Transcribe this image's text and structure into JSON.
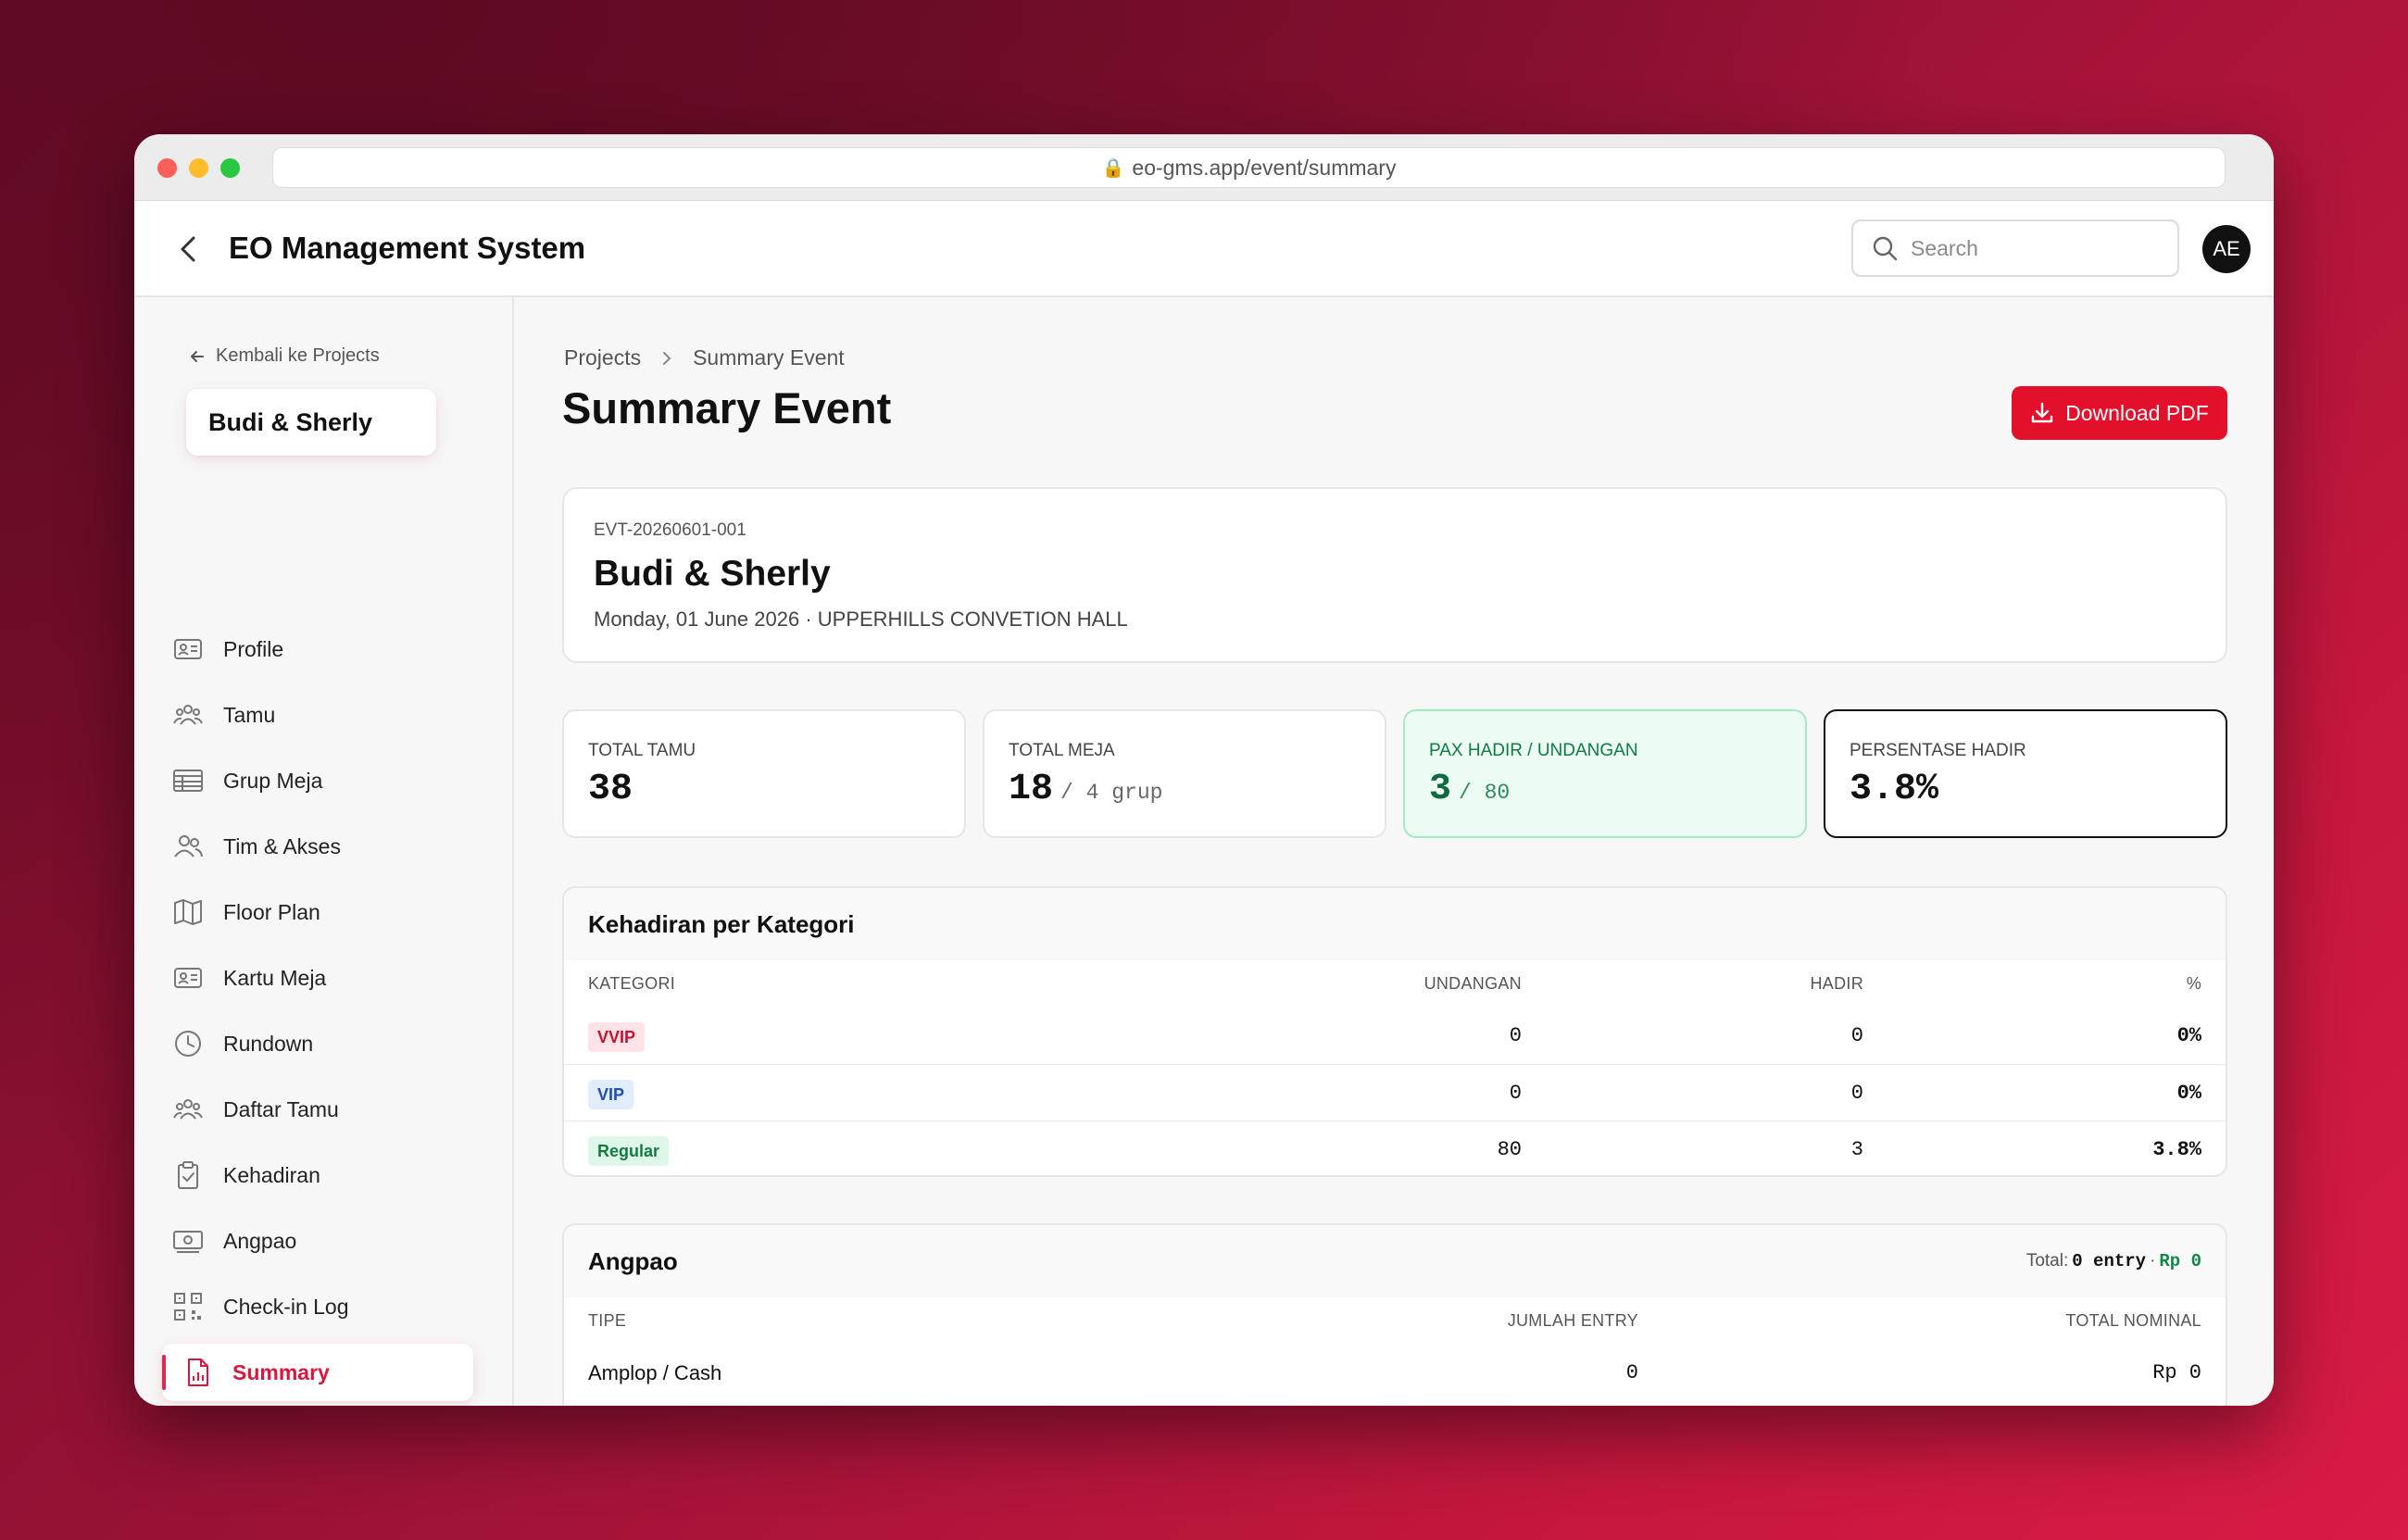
{
  "browser": {
    "url": "eo-gms.app/event/summary"
  },
  "header": {
    "title": "EO Management System",
    "search_placeholder": "Search",
    "avatar_initials": "AE"
  },
  "sidebar": {
    "back_label": "Kembali ke Projects",
    "project_name": "Budi & Sherly",
    "items": [
      {
        "label": "Profile",
        "icon": "id-card-icon"
      },
      {
        "label": "Tamu",
        "icon": "users-icon"
      },
      {
        "label": "Grup Meja",
        "icon": "table-icon"
      },
      {
        "label": "Tim & Akses",
        "icon": "team-icon"
      },
      {
        "label": "Floor Plan",
        "icon": "map-icon"
      },
      {
        "label": "Kartu Meja",
        "icon": "card-icon"
      },
      {
        "label": "Rundown",
        "icon": "clock-icon"
      },
      {
        "label": "Daftar Tamu",
        "icon": "guest-list-icon"
      },
      {
        "label": "Kehadiran",
        "icon": "clipboard-check-icon"
      },
      {
        "label": "Angpao",
        "icon": "money-icon"
      },
      {
        "label": "Check-in Log",
        "icon": "qr-code-icon"
      },
      {
        "label": "Summary",
        "icon": "report-icon",
        "active": true
      }
    ]
  },
  "breadcrumb": {
    "parent": "Projects",
    "current": "Summary Event"
  },
  "page": {
    "title": "Summary Event",
    "download_label": "Download PDF"
  },
  "event": {
    "id": "EVT-20260601-001",
    "name": "Budi & Sherly",
    "meta": "Monday, 01 June 2026 · UPPERHILLS CONVETION HALL"
  },
  "stats": {
    "total_tamu": {
      "label": "TOTAL TAMU",
      "value": "38"
    },
    "total_meja": {
      "label": "TOTAL MEJA",
      "value": "18",
      "sub": "/ 4 grup"
    },
    "pax_hadir": {
      "label": "PAX HADIR / UNDANGAN",
      "value": "3",
      "sub": "/ 80"
    },
    "persentase": {
      "label": "PERSENTASE HADIR",
      "value": "3.8%"
    }
  },
  "kehadiran": {
    "title": "Kehadiran per Kategori",
    "columns": [
      "KATEGORI",
      "UNDANGAN",
      "HADIR",
      "%"
    ],
    "rows": [
      {
        "kategori": "VVIP",
        "undangan": "0",
        "hadir": "0",
        "pct": "0%"
      },
      {
        "kategori": "VIP",
        "undangan": "0",
        "hadir": "0",
        "pct": "0%"
      },
      {
        "kategori": "Regular",
        "undangan": "80",
        "hadir": "3",
        "pct": "3.8%"
      }
    ]
  },
  "angpao": {
    "title": "Angpao",
    "total_label": "Total:",
    "total_entries": "0 entry",
    "total_sep": "·",
    "total_amount": "Rp 0",
    "columns": [
      "TIPE",
      "JUMLAH ENTRY",
      "TOTAL NOMINAL"
    ],
    "rows": [
      {
        "tipe": "Amplop / Cash",
        "jumlah": "0",
        "nominal": "Rp 0"
      }
    ]
  },
  "colors": {
    "accent": "#e3102b",
    "active_nav": "#d8173f",
    "success": "#0f7a45"
  }
}
